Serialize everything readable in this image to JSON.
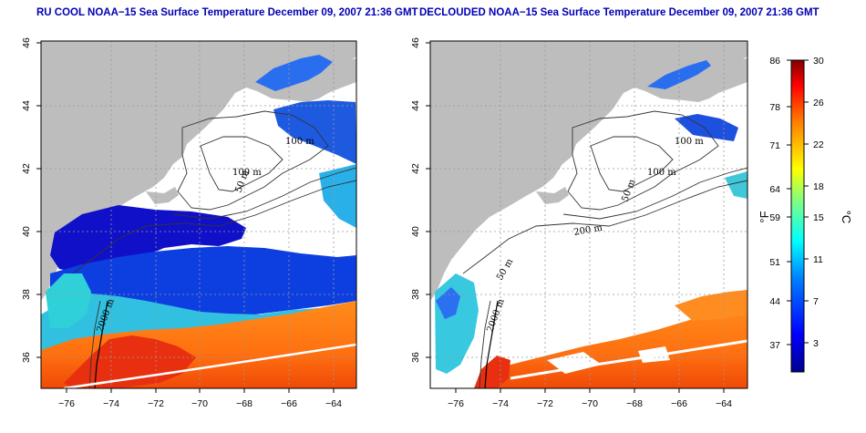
{
  "titles": {
    "left": "RU COOL NOAA−15 Sea Surface Temperature December 09, 2007 21:36 GMT",
    "right": "DECLOUDED NOAA−15 Sea Surface Temperature December 09, 2007 21:36 GMT"
  },
  "axes": {
    "x_ticks": [
      "−76",
      "−74",
      "−72",
      "−70",
      "−68",
      "−66",
      "−64"
    ],
    "y_ticks": [
      "46",
      "44",
      "42",
      "40",
      "38",
      "36"
    ],
    "x_range": [
      -77,
      -63
    ],
    "y_range": [
      35,
      46
    ]
  },
  "contour_labels": {
    "left": [
      "100 m",
      "100 m",
      "50 m",
      "2000 m"
    ],
    "right": [
      "100 m",
      "100 m",
      "50 m",
      "200 m",
      "50 m",
      "2000 m"
    ]
  },
  "colorbar": {
    "fahrenheit_ticks": [
      "86",
      "78",
      "71",
      "64",
      "59",
      "51",
      "44",
      "37"
    ],
    "celsius_ticks": [
      "30",
      "26",
      "22",
      "18",
      "15",
      "11",
      "7",
      "3"
    ],
    "fahrenheit_label": "°F",
    "celsius_label": "°C",
    "range_c": [
      0,
      30
    ]
  },
  "colors": {
    "land": "#bdbdbd",
    "cloud": "#ffffff",
    "title": "#0000b4"
  }
}
